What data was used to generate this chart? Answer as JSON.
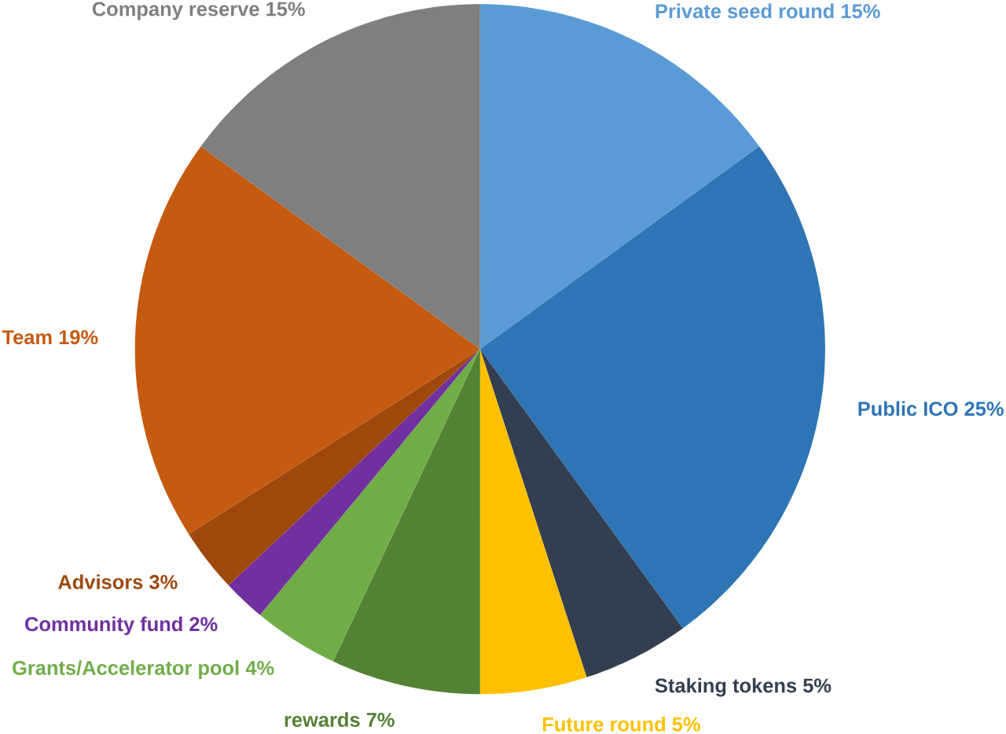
{
  "chart_data": {
    "type": "pie",
    "categories": [
      "Private seed round",
      "Public ICO",
      "Staking tokens",
      "Future round",
      "rewards",
      "Grants/Accelerator pool",
      "Community fund",
      "Advisors",
      "Team",
      "Company reserve"
    ],
    "values": [
      15,
      25,
      5,
      5,
      7,
      4,
      2,
      3,
      19,
      15
    ],
    "value_labels": [
      "15%",
      "25%",
      "5%",
      "5%",
      "7%",
      "4%",
      "2%",
      "3%",
      "19%",
      "15%"
    ],
    "colors": [
      "#5b9bd5",
      "#2e75b6",
      "#333f50",
      "#ffc000",
      "#548235",
      "#70ad47",
      "#7030a0",
      "#9e480e",
      "#c55a11",
      "#7f7f7f"
    ]
  }
}
